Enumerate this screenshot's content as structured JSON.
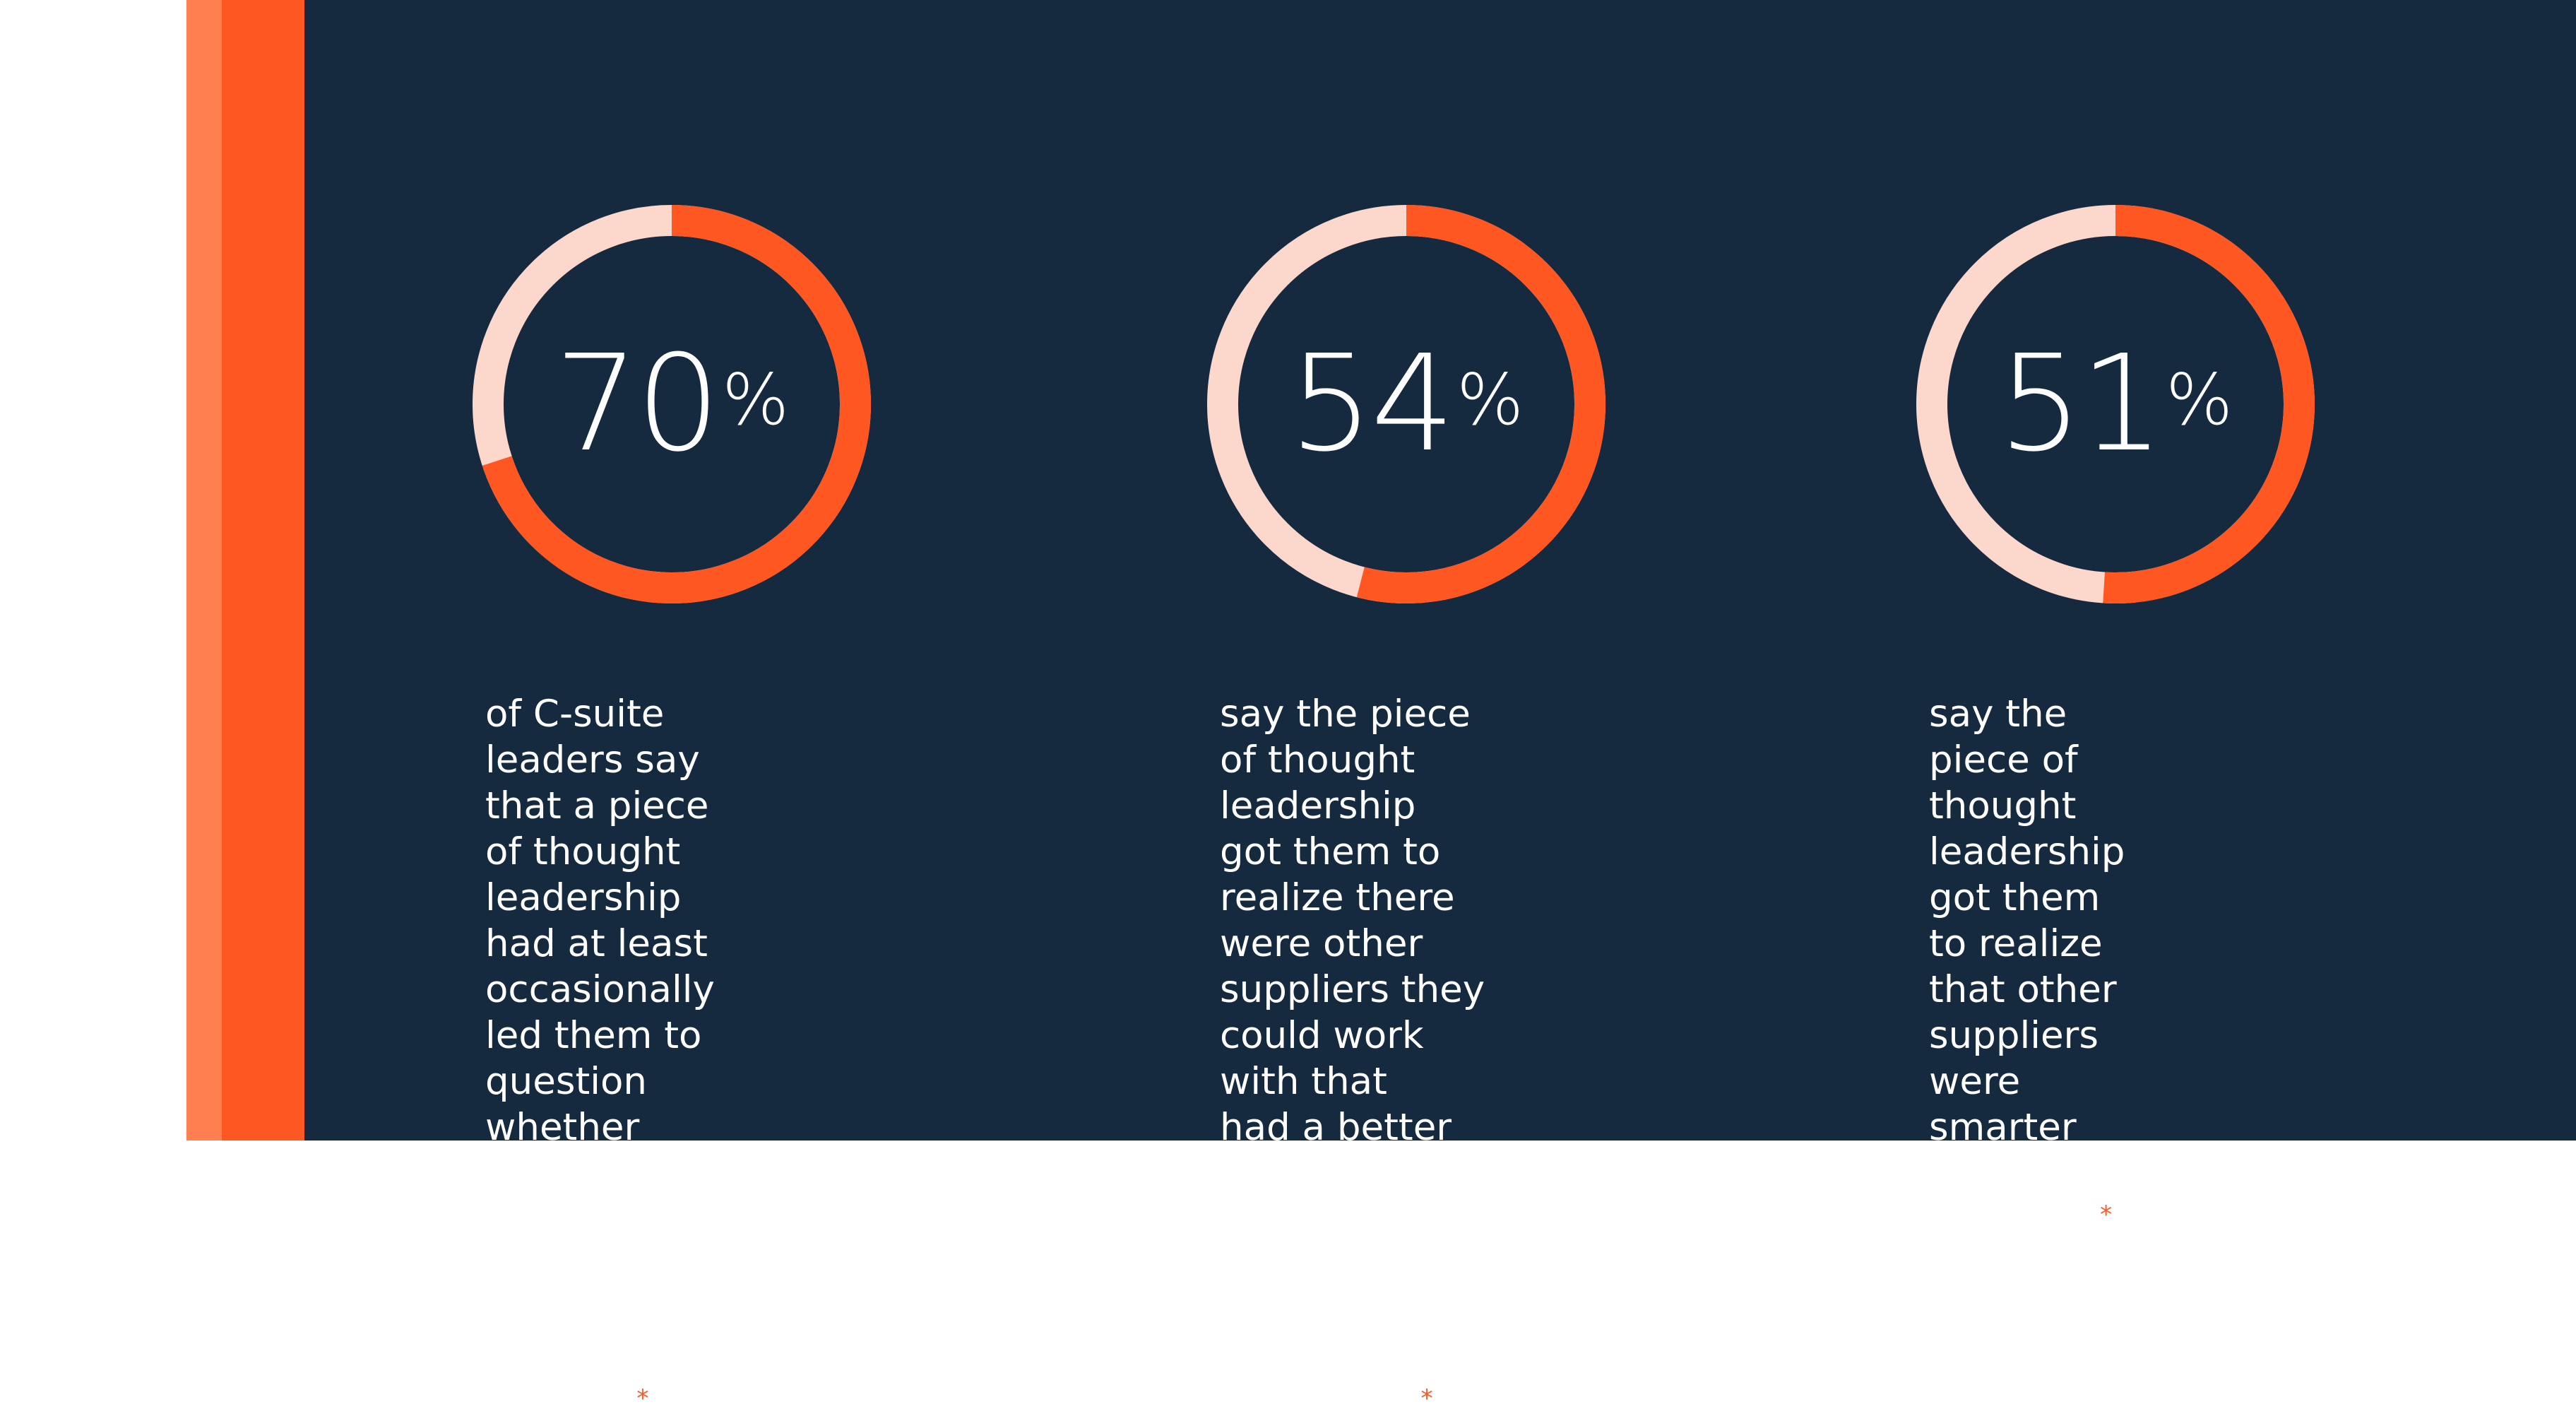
{
  "colors": {
    "background": "#15293f",
    "accent": "#ff5722",
    "accent_light": "#ff7f50",
    "track": "#fcd7cb",
    "text": "#ffffff",
    "page": "#ffffff"
  },
  "stats": [
    {
      "value": "70",
      "unit": "%",
      "description": "of C-suite leaders say that a piece\nof thought leadership had at least\noccasionally led them to question\nwhether they should continue\nworking with an existing supplier",
      "asterisk": "*"
    },
    {
      "value": "54",
      "unit": "%",
      "description": "say the piece of thought leadership\ngot them to realize there were other\nsuppliers they could work with that\nhad a better understanding of the\nchallenges their organization\nwas facing",
      "asterisk": "*"
    },
    {
      "value": "51",
      "unit": "%",
      "description": "say the piece of thought\nleadership got them to realize\nthat other suppliers were\nsmarter or more visionary",
      "asterisk": "*"
    }
  ],
  "chart_data": {
    "type": "pie",
    "variant": "donut",
    "categories": [
      "70%",
      "54%",
      "51%"
    ],
    "values": [
      70,
      54,
      51
    ],
    "max": 100,
    "colors": {
      "filled": "#ff5722",
      "remaining": "#fcd7cb"
    }
  }
}
